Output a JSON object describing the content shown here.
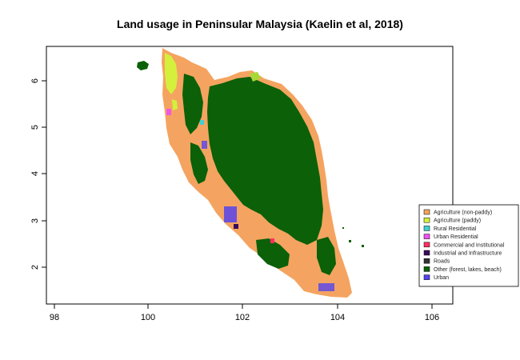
{
  "title": "Land usage in Peninsular Malaysia (Kaelin et al, 2018)",
  "x_axis": {
    "ticks": [
      "98",
      "100",
      "102",
      "104",
      "106"
    ]
  },
  "y_axis": {
    "ticks": [
      "2",
      "3",
      "4",
      "5",
      "6"
    ]
  },
  "legend": {
    "position": "bottom-right",
    "items": [
      {
        "label": "Agriculture (non-paddy)",
        "color": "#f4a460"
      },
      {
        "label": "Agriculture (paddy)",
        "color": "#d4f03c"
      },
      {
        "label": "Rural Residential",
        "color": "#40d0d0"
      },
      {
        "label": "Urban Residential",
        "color": "#f050f0"
      },
      {
        "label": "Commercial and Institutional",
        "color": "#ff3060"
      },
      {
        "label": "Industrial and Infrastructure",
        "color": "#3a0a5a"
      },
      {
        "label": "Roads",
        "color": "#333333"
      },
      {
        "label": "Other (forest, lakes, beach)",
        "color": "#0b6008"
      },
      {
        "label": "Urban",
        "color": "#5544ee"
      }
    ]
  }
}
